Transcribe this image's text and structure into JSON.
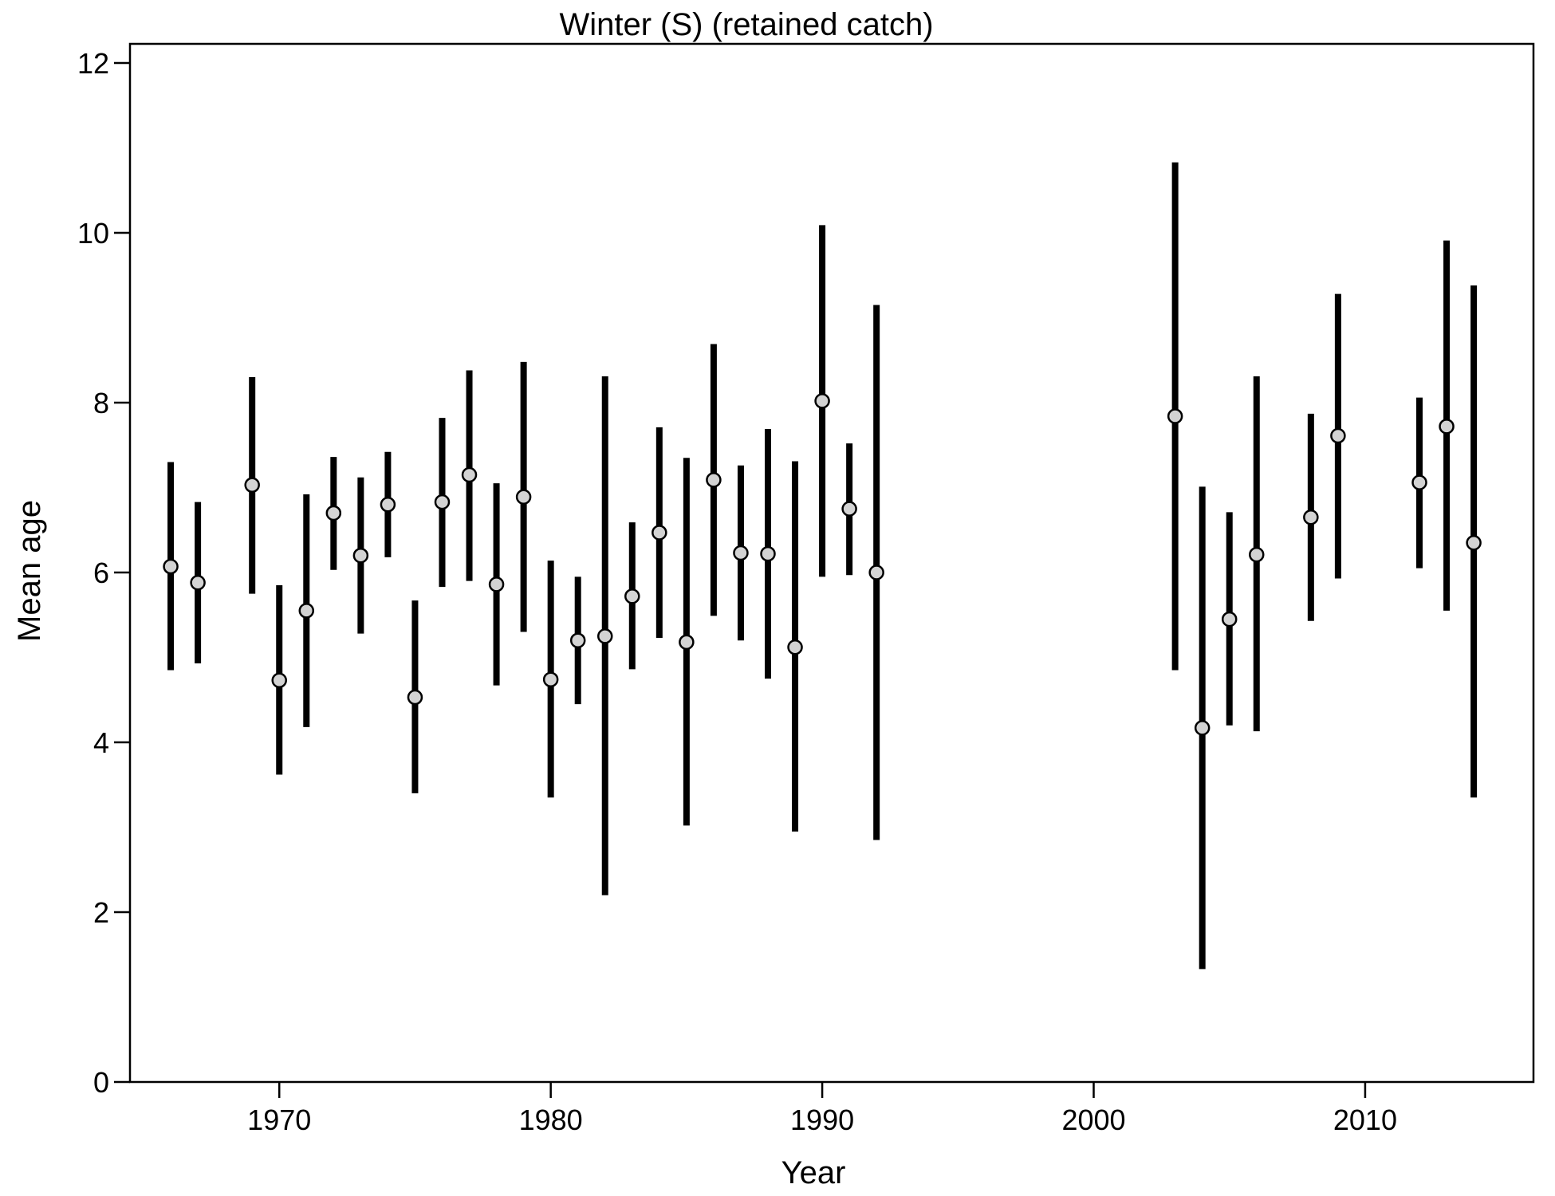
{
  "chart_data": {
    "type": "scatter",
    "title": "Winter (S) (retained catch)",
    "xlabel": "Year",
    "ylabel": "Mean age",
    "xlim": [
      1964.5,
      2016.2
    ],
    "ylim": [
      0,
      12
    ],
    "xticks": [
      1970,
      1980,
      1990,
      2000,
      2010
    ],
    "yticks": [
      0,
      2,
      4,
      6,
      8,
      10,
      12
    ],
    "grid": false,
    "legend": "none",
    "colors": {
      "marker_fill": "#d3d3d3",
      "marker_stroke": "#000000",
      "error_bar": "#000000"
    },
    "points": [
      {
        "x": 1966,
        "y": 6.07,
        "lo": 4.85,
        "hi": 7.3
      },
      {
        "x": 1967,
        "y": 5.88,
        "lo": 4.93,
        "hi": 6.83
      },
      {
        "x": 1969,
        "y": 7.03,
        "lo": 5.75,
        "hi": 8.3
      },
      {
        "x": 1970,
        "y": 4.73,
        "lo": 3.62,
        "hi": 5.85
      },
      {
        "x": 1971,
        "y": 5.55,
        "lo": 4.18,
        "hi": 6.92
      },
      {
        "x": 1972,
        "y": 6.7,
        "lo": 6.03,
        "hi": 7.36
      },
      {
        "x": 1973,
        "y": 6.2,
        "lo": 5.28,
        "hi": 7.12
      },
      {
        "x": 1974,
        "y": 6.8,
        "lo": 6.18,
        "hi": 7.42
      },
      {
        "x": 1975,
        "y": 4.53,
        "lo": 3.4,
        "hi": 5.67
      },
      {
        "x": 1976,
        "y": 6.83,
        "lo": 5.83,
        "hi": 7.82
      },
      {
        "x": 1977,
        "y": 7.15,
        "lo": 5.9,
        "hi": 8.38
      },
      {
        "x": 1978,
        "y": 5.86,
        "lo": 4.67,
        "hi": 7.05
      },
      {
        "x": 1979,
        "y": 6.89,
        "lo": 5.3,
        "hi": 8.48
      },
      {
        "x": 1980,
        "y": 4.74,
        "lo": 3.35,
        "hi": 6.14
      },
      {
        "x": 1981,
        "y": 5.2,
        "lo": 4.45,
        "hi": 5.95
      },
      {
        "x": 1982,
        "y": 5.25,
        "lo": 2.2,
        "hi": 8.31
      },
      {
        "x": 1983,
        "y": 5.72,
        "lo": 4.86,
        "hi": 6.59
      },
      {
        "x": 1984,
        "y": 6.47,
        "lo": 5.23,
        "hi": 7.71
      },
      {
        "x": 1985,
        "y": 5.18,
        "lo": 3.02,
        "hi": 7.35
      },
      {
        "x": 1986,
        "y": 7.09,
        "lo": 5.49,
        "hi": 8.69
      },
      {
        "x": 1987,
        "y": 6.23,
        "lo": 5.2,
        "hi": 7.26
      },
      {
        "x": 1988,
        "y": 6.22,
        "lo": 4.75,
        "hi": 7.69
      },
      {
        "x": 1989,
        "y": 5.12,
        "lo": 2.95,
        "hi": 7.31
      },
      {
        "x": 1990,
        "y": 8.02,
        "lo": 5.95,
        "hi": 10.09
      },
      {
        "x": 1991,
        "y": 6.75,
        "lo": 5.97,
        "hi": 7.52
      },
      {
        "x": 1992,
        "y": 6.0,
        "lo": 2.85,
        "hi": 9.15
      },
      {
        "x": 2003,
        "y": 7.84,
        "lo": 4.85,
        "hi": 10.83
      },
      {
        "x": 2004,
        "y": 4.17,
        "lo": 1.33,
        "hi": 7.01
      },
      {
        "x": 2005,
        "y": 5.45,
        "lo": 4.2,
        "hi": 6.71
      },
      {
        "x": 2006,
        "y": 6.21,
        "lo": 4.13,
        "hi": 8.31
      },
      {
        "x": 2008,
        "y": 6.65,
        "lo": 5.43,
        "hi": 7.87
      },
      {
        "x": 2009,
        "y": 7.61,
        "lo": 5.93,
        "hi": 9.28
      },
      {
        "x": 2012,
        "y": 7.06,
        "lo": 6.05,
        "hi": 8.06
      },
      {
        "x": 2013,
        "y": 7.72,
        "lo": 5.55,
        "hi": 9.91
      },
      {
        "x": 2014,
        "y": 6.35,
        "lo": 3.35,
        "hi": 9.38
      }
    ]
  }
}
